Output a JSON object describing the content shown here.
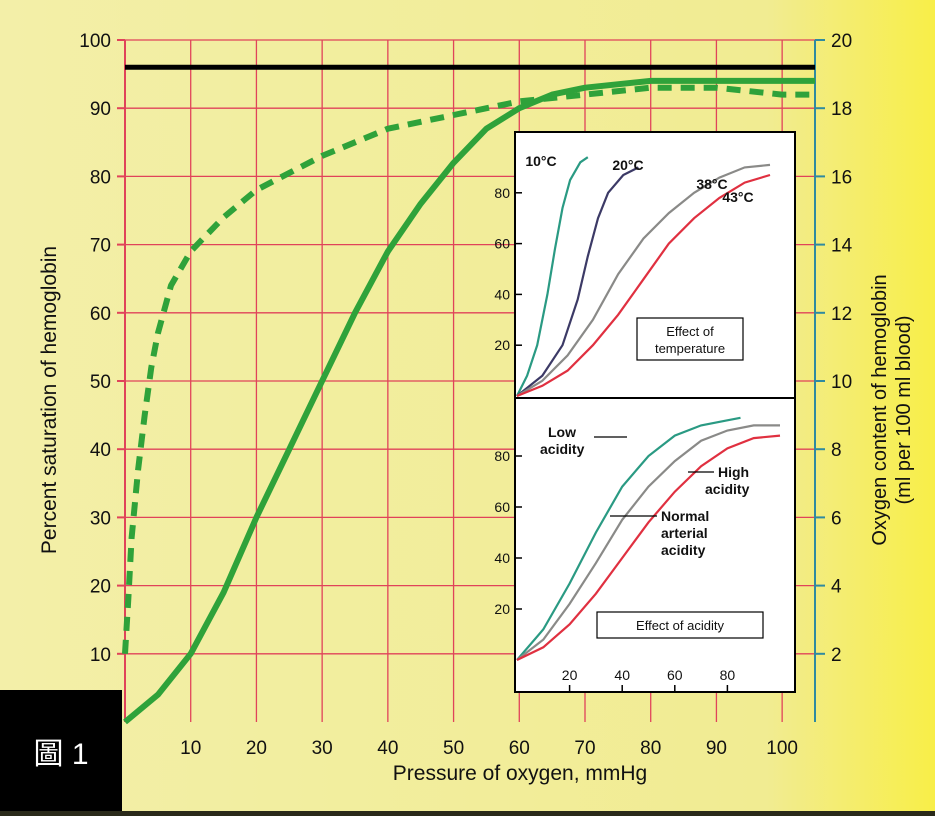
{
  "figure_label": "圖 1",
  "colors": {
    "page": "#f2ee9c",
    "page_right": "#f7ef55",
    "grid": "#e0435a",
    "axis_right": "#2f8aa0",
    "main_curve": "#2fa23a",
    "inset_bg": "#ffffff",
    "cold": "#2a9a83",
    "mid": "#3c3a66",
    "warm": "#8a8a88",
    "hot": "#e03040",
    "label_box": "#000000"
  },
  "chart_data": [
    {
      "type": "line",
      "xlabel": "Pressure of oxygen, mmHg",
      "ylabel": "Percent saturation of hemoglobin",
      "y2label_line1": "Oxygen content of hemoglobin",
      "y2label_line2": "(ml per 100 ml blood)",
      "xlim": [
        0,
        105
      ],
      "ylim": [
        0,
        100
      ],
      "y2lim": [
        0,
        20
      ],
      "xticks": [
        10,
        20,
        30,
        40,
        50,
        60,
        70,
        80,
        90,
        100
      ],
      "yticks": [
        10,
        20,
        30,
        40,
        50,
        60,
        70,
        80,
        90,
        100
      ],
      "y2ticks": [
        2,
        4,
        6,
        8,
        10,
        12,
        14,
        16,
        18,
        20
      ],
      "grid": true,
      "reference_line": {
        "y": 96
      },
      "series": [
        {
          "style": "solid",
          "x": [
            0,
            5,
            10,
            15,
            20,
            25,
            30,
            35,
            40,
            45,
            50,
            55,
            60,
            65,
            70,
            80,
            90,
            100,
            105
          ],
          "y": [
            0,
            4,
            10,
            19,
            30,
            40,
            50,
            60,
            69,
            76,
            82,
            87,
            90,
            92,
            93,
            94,
            94,
            94,
            94
          ]
        },
        {
          "style": "dashed",
          "x": [
            0,
            0.5,
            1,
            2,
            3,
            4,
            5,
            7,
            10,
            15,
            20,
            30,
            40,
            50,
            60,
            70,
            80,
            90,
            100,
            105
          ],
          "y": [
            10,
            18,
            27,
            37,
            45,
            52,
            57,
            64,
            69,
            74,
            78,
            83,
            87,
            89,
            91,
            92,
            93,
            93,
            92,
            92
          ]
        }
      ]
    },
    {
      "type": "line",
      "title": "Effect of temperature",
      "xlim": [
        0,
        100
      ],
      "ylim": [
        0,
        100
      ],
      "yticks": [
        20,
        40,
        60,
        80
      ],
      "series": [
        {
          "name": "10°C",
          "color_key": "cold",
          "x": [
            0,
            4,
            8,
            12,
            15,
            18,
            21,
            25,
            28
          ],
          "y": [
            0,
            8,
            20,
            40,
            58,
            74,
            85,
            92,
            94
          ]
        },
        {
          "name": "20°C",
          "color_key": "mid",
          "x": [
            0,
            10,
            18,
            24,
            28,
            32,
            36,
            42,
            48
          ],
          "y": [
            0,
            8,
            20,
            38,
            55,
            70,
            80,
            87,
            90
          ]
        },
        {
          "name": "38°C",
          "color_key": "warm",
          "x": [
            0,
            10,
            20,
            30,
            40,
            50,
            60,
            70,
            80,
            90,
            100
          ],
          "y": [
            0,
            6,
            16,
            30,
            48,
            62,
            72,
            80,
            86,
            90,
            91
          ]
        },
        {
          "name": "43°C",
          "color_key": "hot",
          "x": [
            0,
            10,
            20,
            30,
            40,
            50,
            60,
            70,
            80,
            90,
            100
          ],
          "y": [
            0,
            4,
            10,
            20,
            32,
            46,
            60,
            70,
            78,
            84,
            87
          ]
        }
      ]
    },
    {
      "type": "line",
      "title": "Effect of acidity",
      "xlim": [
        0,
        100
      ],
      "ylim": [
        0,
        100
      ],
      "xticks": [
        20,
        40,
        60,
        80
      ],
      "yticks": [
        20,
        40,
        60,
        80
      ],
      "labels": {
        "low": "Low acidity",
        "high": "High acidity",
        "normal": "Normal arterial acidity"
      },
      "series": [
        {
          "label_key": "low",
          "color_key": "cold",
          "x": [
            0,
            10,
            20,
            30,
            40,
            50,
            60,
            70,
            80,
            85
          ],
          "y": [
            0,
            12,
            30,
            50,
            68,
            80,
            88,
            92,
            94,
            95
          ]
        },
        {
          "label_key": "normal",
          "color_key": "warm",
          "x": [
            0,
            10,
            20,
            30,
            40,
            50,
            60,
            70,
            80,
            90,
            100
          ],
          "y": [
            0,
            8,
            22,
            38,
            55,
            68,
            78,
            86,
            90,
            92,
            92
          ]
        },
        {
          "label_key": "high",
          "color_key": "hot",
          "x": [
            0,
            10,
            20,
            30,
            40,
            50,
            60,
            70,
            80,
            90,
            100
          ],
          "y": [
            0,
            5,
            14,
            26,
            40,
            54,
            66,
            76,
            83,
            87,
            88
          ]
        }
      ]
    }
  ]
}
